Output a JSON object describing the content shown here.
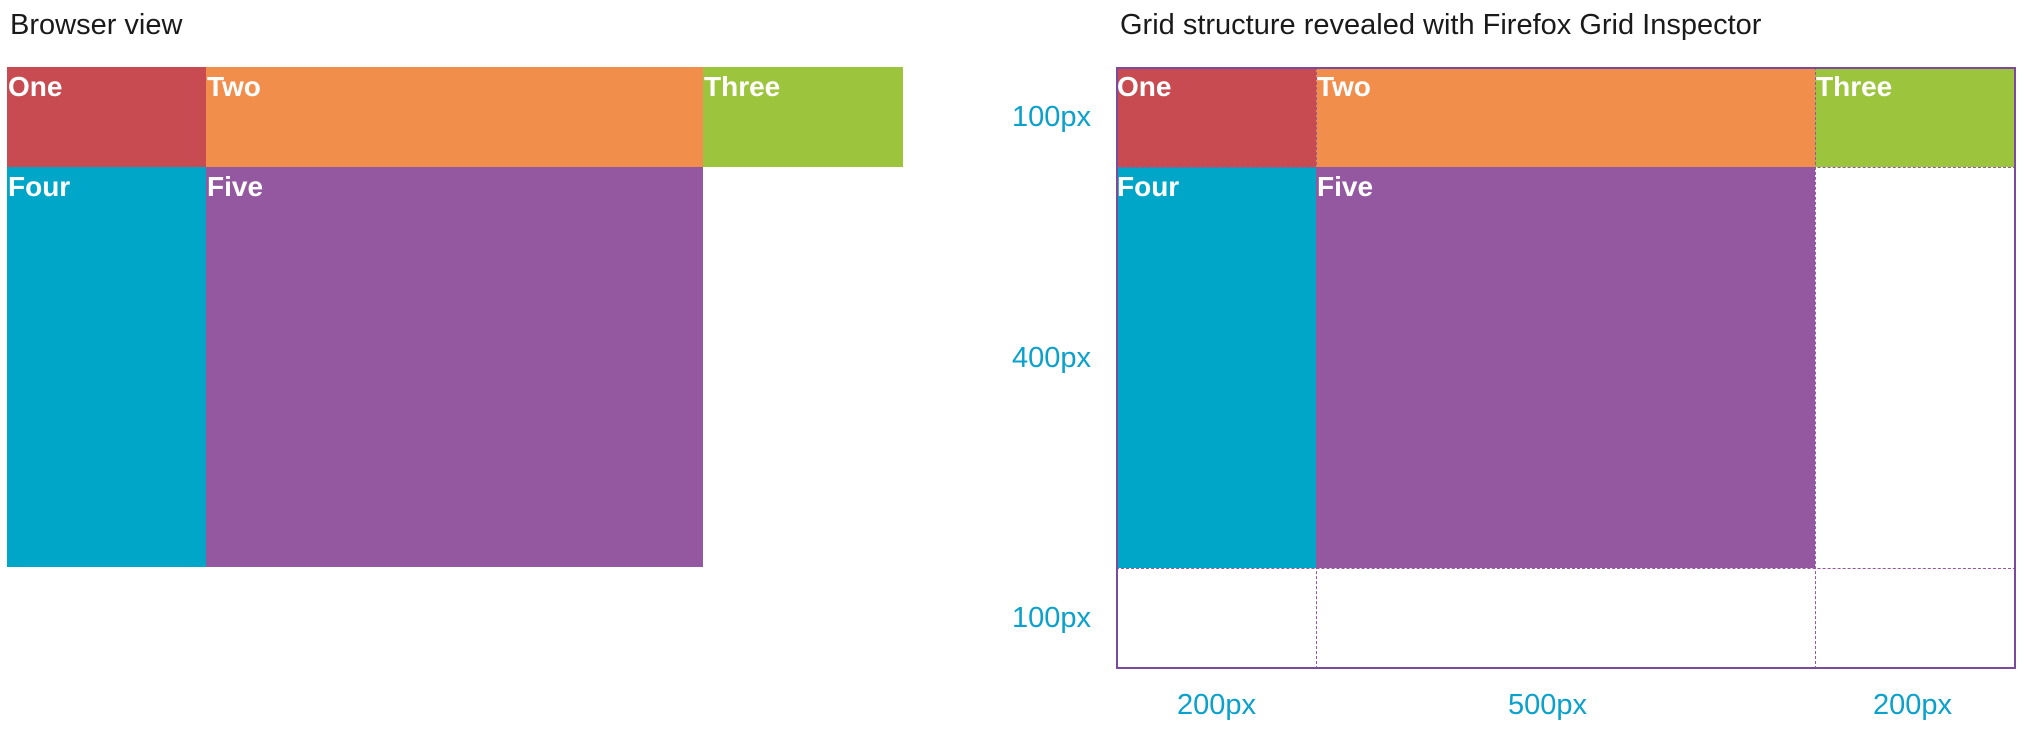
{
  "headings": {
    "browser_view": "Browser view",
    "inspector_view": "Grid structure revealed with Firefox Grid Inspector"
  },
  "items": {
    "one": "One",
    "two": "Two",
    "three": "Three",
    "four": "Four",
    "five": "Five"
  },
  "tracks": {
    "rows": [
      "100px",
      "400px",
      "100px"
    ],
    "columns": [
      "200px",
      "500px",
      "200px"
    ]
  },
  "colors": {
    "one": "#c74b50",
    "two": "#f28e4c",
    "three": "#9cc43d",
    "four": "#00a6c7",
    "five": "#9458a1",
    "grid_lines": "#9458a1",
    "track_labels": "#0aa1cc"
  }
}
